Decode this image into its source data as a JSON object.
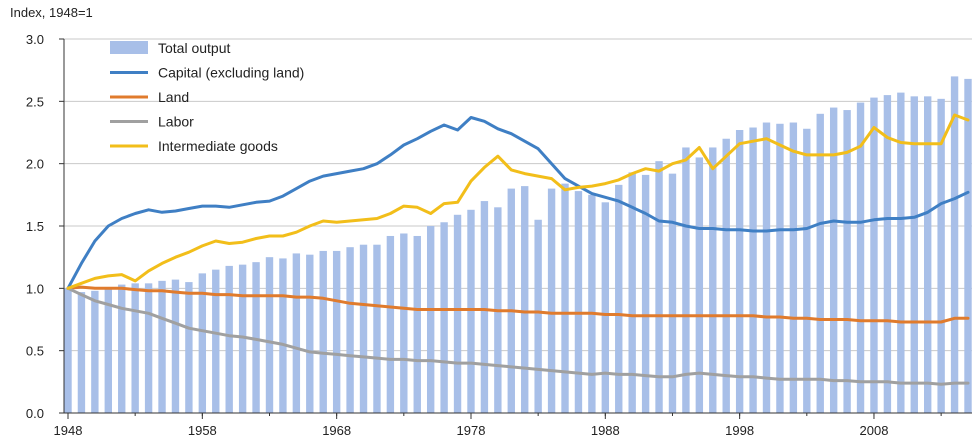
{
  "chart_data": {
    "type": "bar+line",
    "ylabel": "Index, 1948=1",
    "ylim": [
      0,
      3.0
    ],
    "yticks": [
      "0.0",
      "0.5",
      "1.0",
      "1.5",
      "2.0",
      "2.5",
      "3.0"
    ],
    "xtick_labels": [
      "1948",
      "1958",
      "1968",
      "1978",
      "1988",
      "1998",
      "2008"
    ],
    "grid": "horizontal",
    "legend_position": "top-left",
    "x": [
      1948,
      1949,
      1950,
      1951,
      1952,
      1953,
      1954,
      1955,
      1956,
      1957,
      1958,
      1959,
      1960,
      1961,
      1962,
      1963,
      1964,
      1965,
      1966,
      1967,
      1968,
      1969,
      1970,
      1971,
      1972,
      1973,
      1974,
      1975,
      1976,
      1977,
      1978,
      1979,
      1980,
      1981,
      1982,
      1983,
      1984,
      1985,
      1986,
      1987,
      1988,
      1989,
      1990,
      1991,
      1992,
      1993,
      1994,
      1995,
      1996,
      1997,
      1998,
      1999,
      2000,
      2001,
      2002,
      2003,
      2004,
      2005,
      2006,
      2007,
      2008,
      2009,
      2010,
      2011,
      2012,
      2013,
      2014,
      2015
    ],
    "series": [
      {
        "name": "Total output",
        "kind": "bar",
        "color": "#a8bfe8",
        "values": [
          1.0,
          0.97,
          0.98,
          1.0,
          1.03,
          1.04,
          1.04,
          1.06,
          1.07,
          1.05,
          1.12,
          1.15,
          1.18,
          1.19,
          1.21,
          1.25,
          1.24,
          1.28,
          1.27,
          1.3,
          1.3,
          1.33,
          1.35,
          1.35,
          1.42,
          1.44,
          1.42,
          1.5,
          1.53,
          1.59,
          1.63,
          1.7,
          1.65,
          1.8,
          1.82,
          1.55,
          1.8,
          1.84,
          1.78,
          1.75,
          1.69,
          1.83,
          1.93,
          1.91,
          2.02,
          1.92,
          2.13,
          2.05,
          2.13,
          2.2,
          2.27,
          2.29,
          2.33,
          2.32,
          2.33,
          2.28,
          2.4,
          2.45,
          2.43,
          2.49,
          2.53,
          2.55,
          2.57,
          2.54,
          2.54,
          2.52,
          2.7,
          2.68
        ]
      },
      {
        "name": "Capital (excluding land)",
        "kind": "line",
        "color": "#3f7fc4",
        "values": [
          1.0,
          1.2,
          1.38,
          1.5,
          1.56,
          1.6,
          1.63,
          1.61,
          1.62,
          1.64,
          1.66,
          1.66,
          1.65,
          1.67,
          1.69,
          1.7,
          1.74,
          1.8,
          1.86,
          1.9,
          1.92,
          1.94,
          1.96,
          2.0,
          2.07,
          2.15,
          2.2,
          2.26,
          2.31,
          2.27,
          2.37,
          2.34,
          2.28,
          2.24,
          2.18,
          2.12,
          2.0,
          1.88,
          1.82,
          1.76,
          1.73,
          1.7,
          1.65,
          1.6,
          1.54,
          1.53,
          1.5,
          1.48,
          1.48,
          1.47,
          1.47,
          1.46,
          1.46,
          1.47,
          1.47,
          1.48,
          1.52,
          1.54,
          1.53,
          1.53,
          1.55,
          1.56,
          1.56,
          1.57,
          1.61,
          1.68,
          1.72,
          1.77
        ]
      },
      {
        "name": "Land",
        "kind": "line",
        "color": "#e07b2d",
        "values": [
          1.0,
          1.01,
          1.0,
          1.0,
          1.0,
          0.99,
          0.98,
          0.98,
          0.97,
          0.96,
          0.96,
          0.95,
          0.95,
          0.94,
          0.94,
          0.94,
          0.94,
          0.93,
          0.93,
          0.92,
          0.9,
          0.88,
          0.87,
          0.86,
          0.85,
          0.84,
          0.83,
          0.83,
          0.83,
          0.83,
          0.83,
          0.83,
          0.82,
          0.82,
          0.81,
          0.81,
          0.8,
          0.8,
          0.8,
          0.8,
          0.79,
          0.79,
          0.78,
          0.78,
          0.78,
          0.78,
          0.78,
          0.78,
          0.78,
          0.78,
          0.78,
          0.78,
          0.77,
          0.77,
          0.76,
          0.76,
          0.75,
          0.75,
          0.75,
          0.74,
          0.74,
          0.74,
          0.73,
          0.73,
          0.73,
          0.73,
          0.76,
          0.76
        ]
      },
      {
        "name": "Labor",
        "kind": "line",
        "color": "#a0a0a0",
        "values": [
          1.0,
          0.95,
          0.9,
          0.87,
          0.84,
          0.82,
          0.8,
          0.76,
          0.72,
          0.68,
          0.66,
          0.64,
          0.62,
          0.61,
          0.59,
          0.57,
          0.55,
          0.52,
          0.49,
          0.48,
          0.47,
          0.46,
          0.45,
          0.44,
          0.43,
          0.43,
          0.42,
          0.42,
          0.41,
          0.4,
          0.4,
          0.39,
          0.38,
          0.37,
          0.36,
          0.35,
          0.34,
          0.33,
          0.32,
          0.31,
          0.32,
          0.31,
          0.31,
          0.3,
          0.29,
          0.29,
          0.31,
          0.32,
          0.31,
          0.3,
          0.29,
          0.29,
          0.28,
          0.27,
          0.27,
          0.27,
          0.27,
          0.26,
          0.26,
          0.25,
          0.25,
          0.25,
          0.24,
          0.24,
          0.24,
          0.23,
          0.24,
          0.24
        ]
      },
      {
        "name": "Intermediate goods",
        "kind": "line",
        "color": "#f2be1a",
        "values": [
          1.0,
          1.04,
          1.08,
          1.1,
          1.11,
          1.06,
          1.14,
          1.2,
          1.25,
          1.29,
          1.34,
          1.38,
          1.36,
          1.37,
          1.4,
          1.42,
          1.42,
          1.45,
          1.5,
          1.54,
          1.53,
          1.54,
          1.55,
          1.56,
          1.6,
          1.66,
          1.65,
          1.6,
          1.68,
          1.69,
          1.86,
          1.97,
          2.06,
          1.95,
          1.92,
          1.9,
          1.88,
          1.79,
          1.81,
          1.82,
          1.84,
          1.87,
          1.92,
          1.96,
          1.94,
          2.0,
          2.03,
          2.13,
          1.96,
          2.06,
          2.16,
          2.18,
          2.2,
          2.15,
          2.1,
          2.07,
          2.07,
          2.07,
          2.09,
          2.14,
          2.29,
          2.21,
          2.17,
          2.16,
          2.16,
          2.16,
          2.39,
          2.35
        ]
      }
    ]
  }
}
